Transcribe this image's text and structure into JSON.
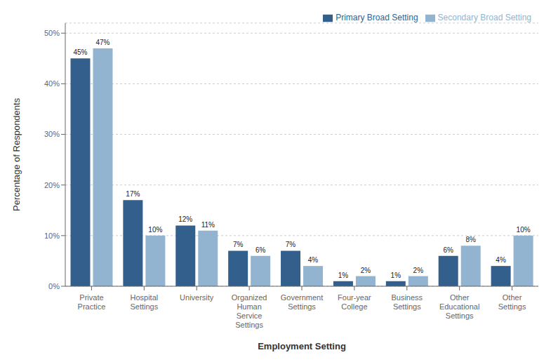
{
  "chart_data": {
    "type": "bar",
    "categories": [
      "Private\nPractice",
      "Hospital\nSettings",
      "University",
      "Organized\nHuman\nService\nSettings",
      "Government\nSettings",
      "Four-year\nCollege",
      "Business\nSettings",
      "Other\nEducational\nSettings",
      "Other\nSettings"
    ],
    "series": [
      {
        "name": "Primary Broad Setting",
        "color": "#335f8c",
        "values": [
          45,
          17,
          12,
          7,
          7,
          1,
          1,
          6,
          4
        ],
        "value_labels": [
          "45%",
          "17%",
          "12%",
          "7%",
          "7%",
          "1%",
          "1%",
          "6%",
          "4%"
        ]
      },
      {
        "name": "Secondary Broad Setting",
        "color": "#92b4d0",
        "values": [
          47,
          10,
          11,
          6,
          4,
          2,
          2,
          8,
          10
        ],
        "value_labels": [
          "47%",
          "10%",
          "11%",
          "6%",
          "4%",
          "2%",
          "2%",
          "8%",
          "10%"
        ]
      }
    ],
    "xlabel": "Employment Setting",
    "ylabel": "Percentage of Respondents",
    "ylim": [
      0,
      52
    ],
    "yticks": [
      {
        "value": 0,
        "label": "0%"
      },
      {
        "value": 10,
        "label": "10%"
      },
      {
        "value": 20,
        "label": "20%"
      },
      {
        "value": 30,
        "label": "30%"
      },
      {
        "value": 40,
        "label": "40%"
      },
      {
        "value": 50,
        "label": "50%"
      }
    ],
    "grid": true,
    "legend": "upper right",
    "data_labels": true
  }
}
